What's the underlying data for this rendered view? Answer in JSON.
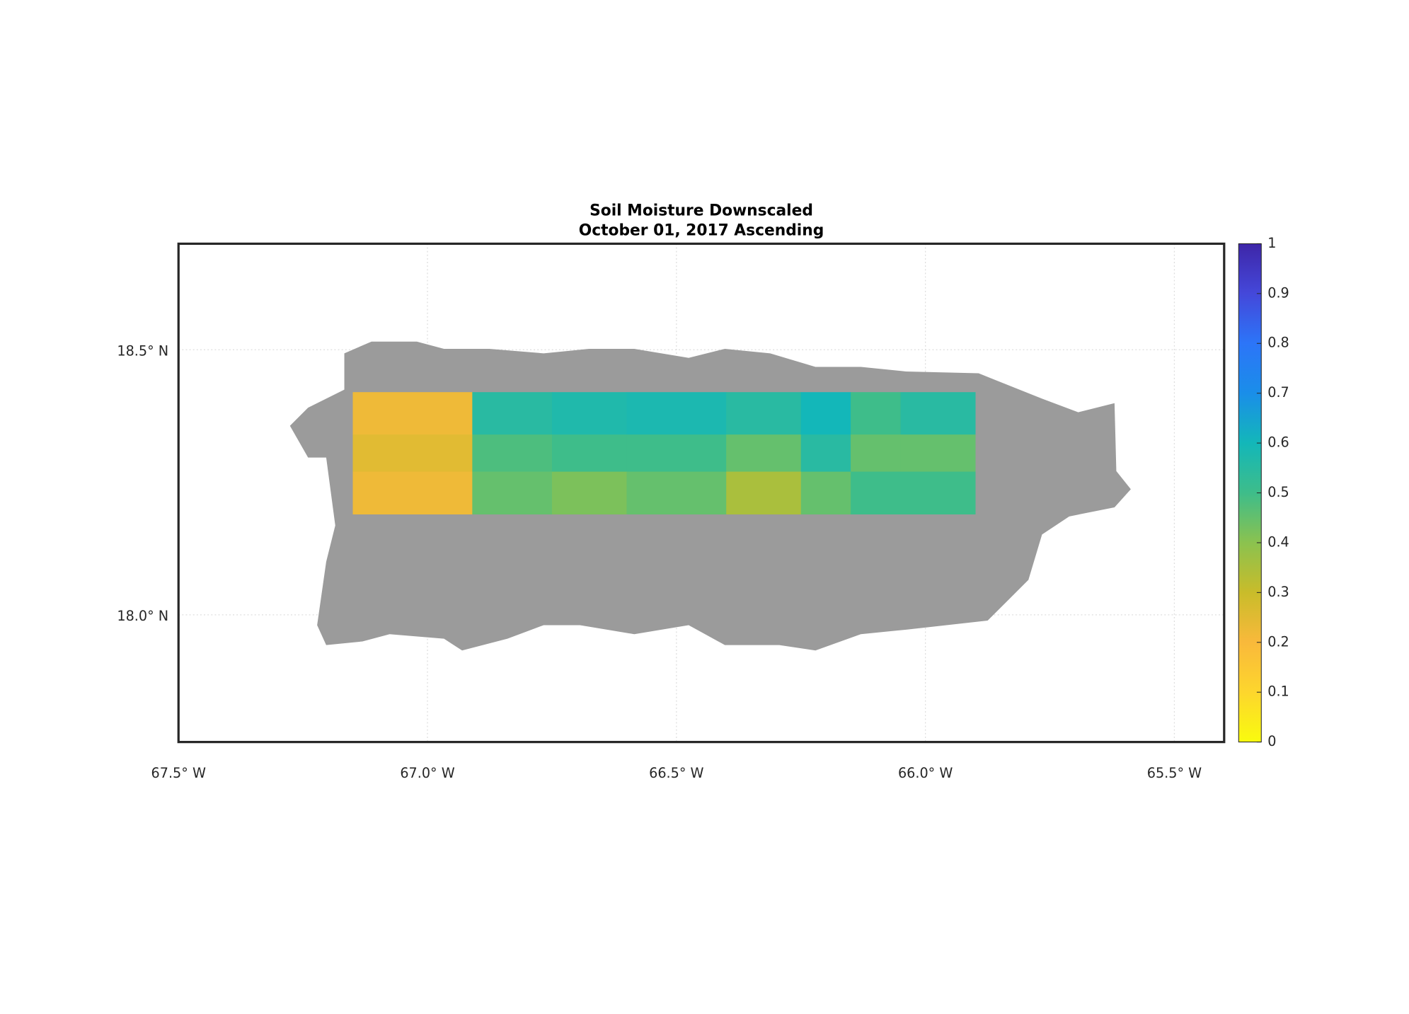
{
  "chart_data": {
    "type": "heatmap",
    "title": "Soil Moisture Downscaled",
    "subtitle": "October 01, 2017 Ascending",
    "xlim": [
      -67.5,
      -65.4
    ],
    "ylim": [
      17.76,
      18.7
    ],
    "xticks": [
      {
        "value": -67.5,
        "label": "67.5° W"
      },
      {
        "value": -67.0,
        "label": "67.0° W"
      },
      {
        "value": -66.5,
        "label": "66.5° W"
      },
      {
        "value": -66.0,
        "label": "66.0° W"
      },
      {
        "value": -65.5,
        "label": "65.5° W"
      }
    ],
    "yticks": [
      {
        "value": 18.0,
        "label": "18.0° N"
      },
      {
        "value": 18.5,
        "label": "18.5° N"
      }
    ],
    "grid": true,
    "x_edges": [
      -67.15,
      -66.91,
      -66.75,
      -66.6,
      -66.4,
      -66.25,
      -66.15,
      -66.05,
      -65.9
    ],
    "y_edges": [
      18.42,
      18.34,
      18.27,
      18.19
    ],
    "values": [
      [
        0.22,
        0.55,
        0.57,
        0.58,
        0.55,
        0.6,
        0.5,
        0.55
      ],
      [
        0.25,
        0.48,
        0.5,
        0.5,
        0.45,
        0.55,
        0.45,
        0.45
      ],
      [
        0.22,
        0.45,
        0.42,
        0.45,
        0.35,
        0.45,
        0.5,
        0.5
      ]
    ],
    "clim": [
      0,
      1
    ],
    "colorbar_ticks": [
      0,
      0.1,
      0.2,
      0.3,
      0.4,
      0.5,
      0.6,
      0.7,
      0.8,
      0.9,
      1
    ],
    "colormap": [
      "#f9fb0e",
      "#fdd62d",
      "#f9b93b",
      "#c9bc2a",
      "#8bc24f",
      "#3ebd8a",
      "#13b7b9",
      "#1a8ee9",
      "#2c75f8",
      "#4448da",
      "#3e26a8"
    ],
    "land_color": "#9b9b9b"
  }
}
